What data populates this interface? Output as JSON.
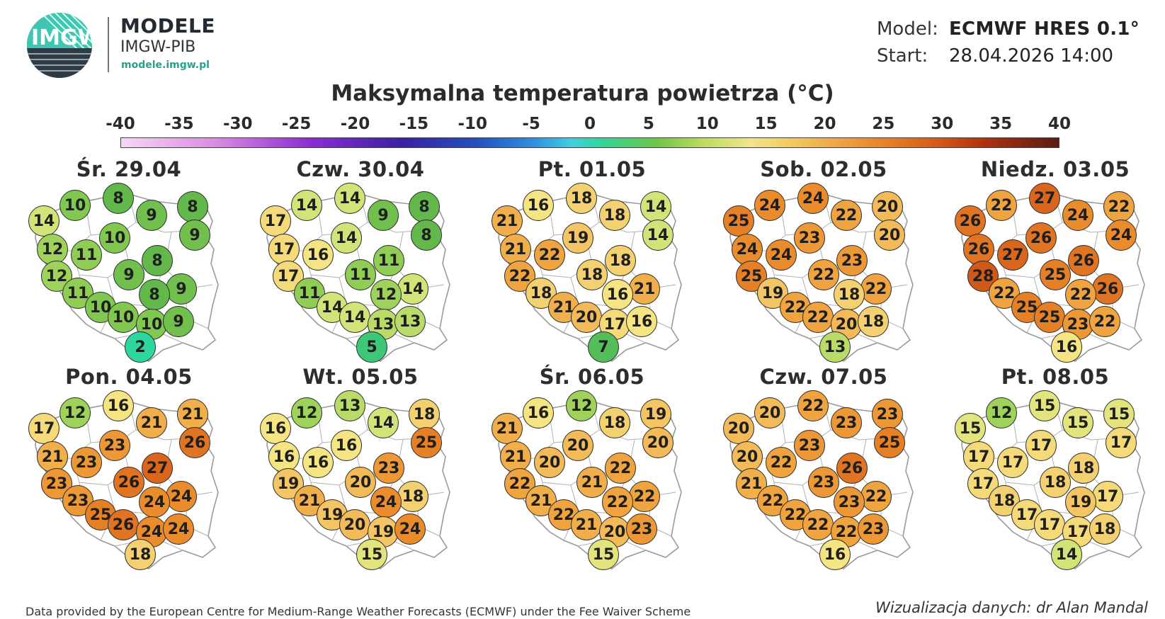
{
  "brand": {
    "name": "MODELE",
    "org": "IMGW-PIB",
    "url": "modele.imgw.pl",
    "logo_text": "IMGW"
  },
  "model": {
    "model_label": "Model:",
    "model_value": "ECMWF HRES 0.1°",
    "start_label": "Start:",
    "start_value": "28.04.2026 14:00"
  },
  "title": "Maksymalna temperatura powietrza (°C)",
  "scale": {
    "ticks": [
      "-40",
      "-35",
      "-30",
      "-25",
      "-20",
      "-15",
      "-10",
      "-5",
      "0",
      "5",
      "10",
      "15",
      "20",
      "25",
      "30",
      "35",
      "40"
    ]
  },
  "days": [
    {
      "label": "Śr. 29.04",
      "temps": [
        10,
        8,
        8,
        14,
        9,
        9,
        10,
        12,
        11,
        8,
        12,
        9,
        9,
        11,
        8,
        10,
        10,
        10,
        9,
        2
      ]
    },
    {
      "label": "Czw. 30.04",
      "temps": [
        14,
        14,
        8,
        17,
        9,
        8,
        14,
        17,
        16,
        11,
        17,
        11,
        14,
        11,
        12,
        14,
        14,
        13,
        13,
        5
      ]
    },
    {
      "label": "Pt. 01.05",
      "temps": [
        16,
        18,
        14,
        21,
        18,
        14,
        19,
        21,
        22,
        18,
        22,
        18,
        21,
        18,
        16,
        21,
        20,
        17,
        16,
        7
      ]
    },
    {
      "label": "Sob. 02.05",
      "temps": [
        24,
        24,
        20,
        25,
        22,
        20,
        23,
        24,
        24,
        23,
        25,
        22,
        22,
        19,
        18,
        22,
        22,
        20,
        18,
        13
      ]
    },
    {
      "label": "Niedz. 03.05",
      "temps": [
        22,
        27,
        22,
        26,
        24,
        24,
        26,
        26,
        27,
        26,
        28,
        25,
        26,
        22,
        22,
        25,
        25,
        23,
        22,
        16
      ]
    },
    {
      "label": "Pon. 04.05",
      "temps": [
        12,
        16,
        21,
        17,
        21,
        26,
        23,
        21,
        23,
        27,
        23,
        26,
        24,
        23,
        24,
        25,
        26,
        24,
        24,
        18
      ]
    },
    {
      "label": "Wt. 05.05",
      "temps": [
        12,
        13,
        18,
        16,
        14,
        25,
        16,
        16,
        16,
        23,
        19,
        20,
        18,
        21,
        24,
        19,
        20,
        19,
        24,
        15
      ]
    },
    {
      "label": "Śr. 06.05",
      "temps": [
        16,
        12,
        19,
        21,
        18,
        20,
        20,
        21,
        20,
        22,
        22,
        21,
        22,
        21,
        22,
        22,
        21,
        20,
        23,
        15
      ]
    },
    {
      "label": "Czw. 07.05",
      "temps": [
        20,
        22,
        23,
        20,
        23,
        25,
        23,
        20,
        22,
        26,
        21,
        23,
        22,
        22,
        23,
        22,
        22,
        22,
        23,
        16
      ]
    },
    {
      "label": "Pt. 08.05",
      "temps": [
        12,
        15,
        15,
        15,
        15,
        17,
        17,
        17,
        17,
        18,
        17,
        18,
        17,
        18,
        19,
        17,
        17,
        17,
        18,
        14
      ]
    }
  ],
  "footer": {
    "left": "Data provided by the European Centre for Medium-Range Weather Forecasts (ECMWF) under the Fee Waiver Scheme",
    "right": "Wizualizacja danych: dr Alan Mandal"
  }
}
